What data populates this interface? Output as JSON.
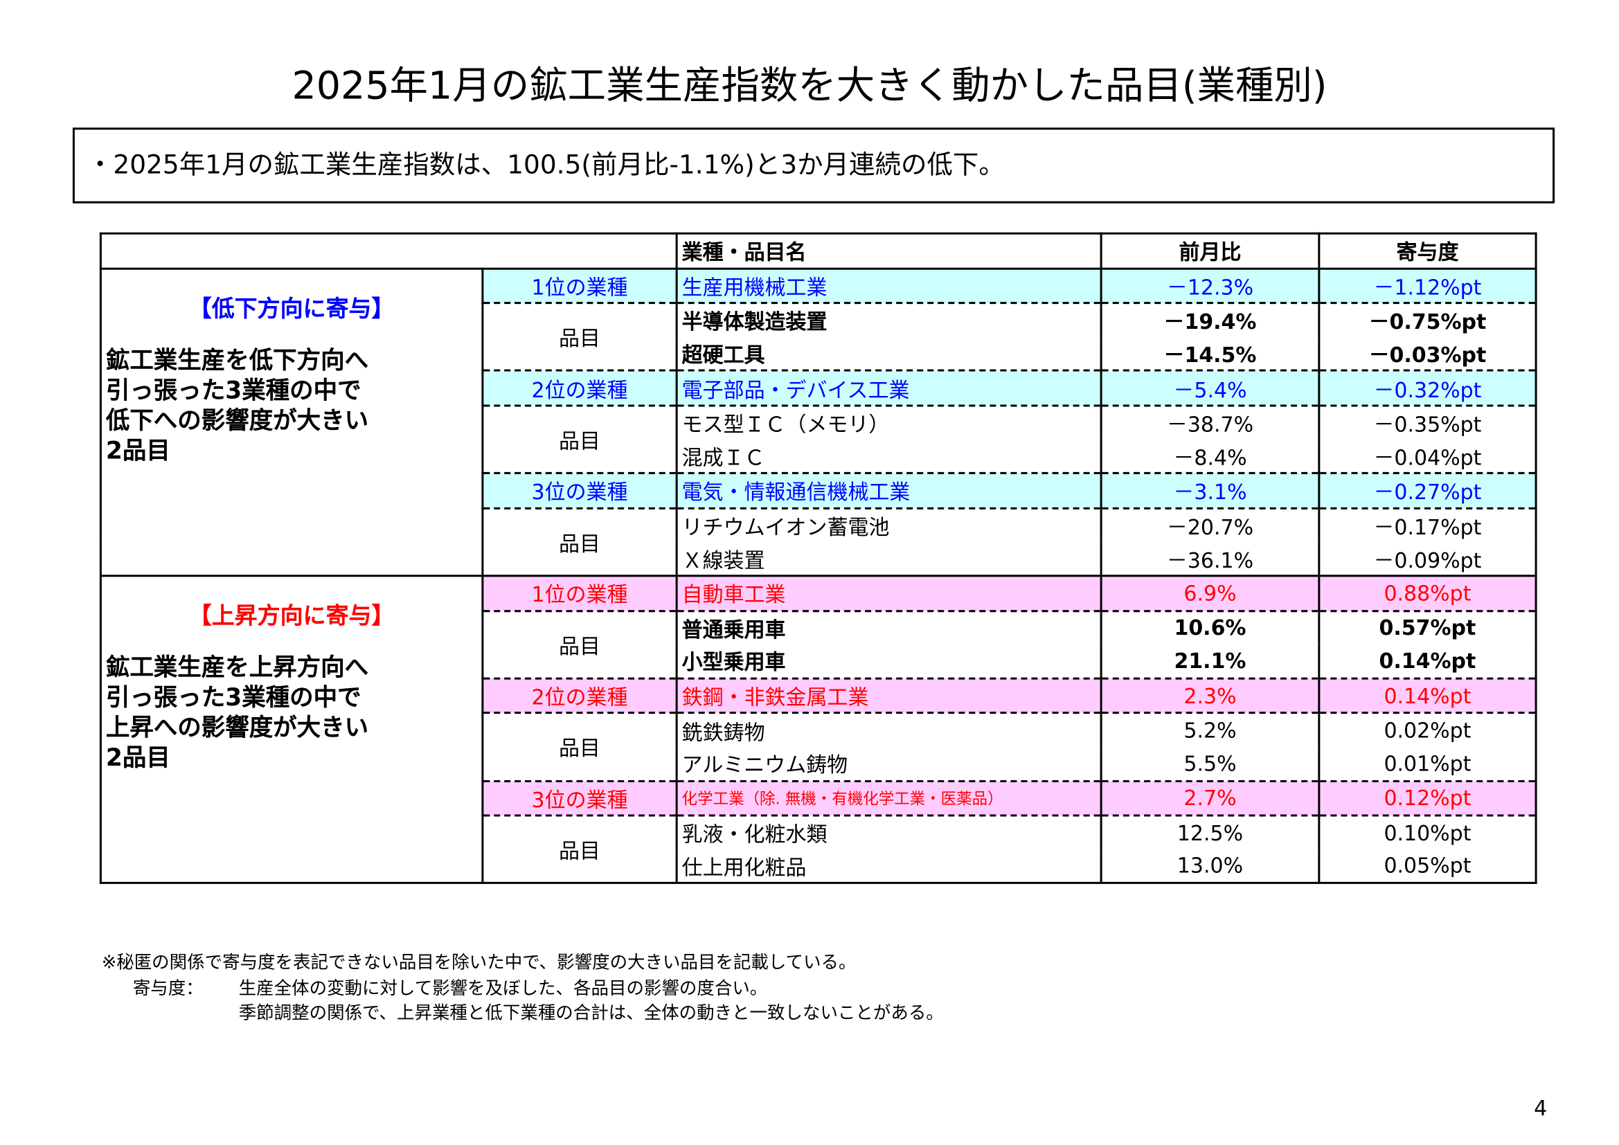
{
  "title": "2025年1月の鉱工業生産指数を大きく動かした品目(業種別)",
  "summary": "・2025年1月の鉱工業生産指数は、100.5(前月比-1.1%)と3か月連続の低下。",
  "table": {
    "header": [
      "業種・品目名",
      "前月比",
      "寄与度"
    ],
    "groups": [
      {
        "label": "【低下方向に寄与】",
        "description": [
          "鉱工業生産を低下方向へ",
          "引っ張った3業種の中で",
          "低下への影響度が大きい",
          "2品目"
        ],
        "sectors": [
          {
            "rank": "1位の業種",
            "name": "生産用機械工業",
            "mom": "－12.3%",
            "contribution": "－1.12%pt",
            "item_label": "品目",
            "items": [
              {
                "name": "半導体製造装置",
                "mom": "－19.4%",
                "contribution": "－0.75%pt"
              },
              {
                "name": "超硬工具",
                "mom": "－14.5%",
                "contribution": "－0.03%pt"
              }
            ]
          },
          {
            "rank": "2位の業種",
            "name": "電子部品・デバイス工業",
            "mom": "－5.4%",
            "contribution": "－0.32%pt",
            "item_label": "品目",
            "items": [
              {
                "name": "モス型ＩＣ（メモリ）",
                "mom": "－38.7%",
                "contribution": "－0.35%pt"
              },
              {
                "name": "混成ＩＣ",
                "mom": "－8.4%",
                "contribution": "－0.04%pt"
              }
            ]
          },
          {
            "rank": "3位の業種",
            "name": "電気・情報通信機械工業",
            "mom": "－3.1%",
            "contribution": "－0.27%pt",
            "item_label": "品目",
            "items": [
              {
                "name": "リチウムイオン蓄電池",
                "mom": "－20.7%",
                "contribution": "－0.17%pt"
              },
              {
                "name": "Ｘ線装置",
                "mom": "－36.1%",
                "contribution": "－0.09%pt"
              }
            ]
          }
        ]
      },
      {
        "label": "【上昇方向に寄与】",
        "description": [
          "鉱工業生産を上昇方向へ",
          "引っ張った3業種の中で",
          "上昇への影響度が大きい",
          "2品目"
        ],
        "sectors": [
          {
            "rank": "1位の業種",
            "name": "自動車工業",
            "mom": "6.9%",
            "contribution": "0.88%pt",
            "item_label": "品目",
            "items": [
              {
                "name": "普通乗用車",
                "mom": "10.6%",
                "contribution": "0.57%pt"
              },
              {
                "name": "小型乗用車",
                "mom": "21.1%",
                "contribution": "0.14%pt"
              }
            ]
          },
          {
            "rank": "2位の業種",
            "name": "鉄鋼・非鉄金属工業",
            "mom": "2.3%",
            "contribution": "0.14%pt",
            "item_label": "品目",
            "items": [
              {
                "name": "銑鉄鋳物",
                "mom": "5.2%",
                "contribution": "0.02%pt"
              },
              {
                "name": "アルミニウム鋳物",
                "mom": "5.5%",
                "contribution": "0.01%pt"
              }
            ]
          },
          {
            "rank": "3位の業種",
            "name": "化学工業（除. 無機・有機化学工業・医薬品）",
            "mom": "2.7%",
            "contribution": "0.12%pt",
            "item_label": "品目",
            "items": [
              {
                "name": "乳液・化粧水類",
                "mom": "12.5%",
                "contribution": "0.10%pt"
              },
              {
                "name": "仕上用化粧品",
                "mom": "13.0%",
                "contribution": "0.05%pt"
              }
            ]
          }
        ]
      }
    ]
  },
  "notes": {
    "note": "※秘匿の関係で寄与度を表記できない品目を除いた中で、影響度の大きい品目を記載している。",
    "term": "寄与度：",
    "definition": [
      "生産全体の変動に対して影響を及ぼした、各品目の影響の度合い。",
      "季節調整の関係で、上昇業種と低下業種の合計は、全体の動きと一致しないことがある。"
    ]
  },
  "page_number": "4"
}
